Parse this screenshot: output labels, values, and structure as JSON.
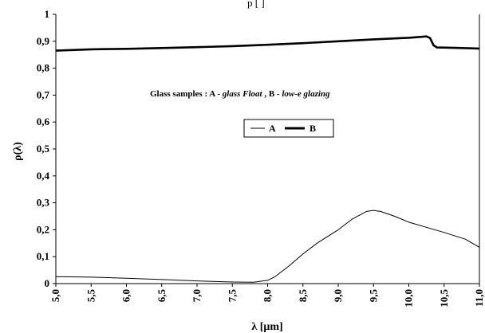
{
  "page": {
    "top_fragment": "p                                   [  ]"
  },
  "chart_data": {
    "type": "line",
    "xlabel": "λ [μm]",
    "ylabel": "ρ(λ)",
    "xlim": [
      5.0,
      11.0
    ],
    "ylim": [
      0,
      1
    ],
    "x_ticks": [
      "5,0",
      "5,5",
      "6,0",
      "6,5",
      "7,0",
      "7,5",
      "8,0",
      "8,5",
      "9,0",
      "9,5",
      "10,0",
      "10,5",
      "11,0"
    ],
    "y_ticks": [
      "0",
      "0,1",
      "0,2",
      "0,3",
      "0,4",
      "0,5",
      "0,6",
      "0,7",
      "0,8",
      "0,9",
      "1"
    ],
    "annotation": {
      "prefix": "Glass samples : A - ",
      "a_name": "glass Float",
      "middle": " , B - ",
      "b_name": "low-e glazing"
    },
    "legend_position": "center",
    "grid": false,
    "series": [
      {
        "name": "A",
        "color": "#000000",
        "points": [
          [
            5.0,
            0.026
          ],
          [
            5.5,
            0.024
          ],
          [
            6.0,
            0.02
          ],
          [
            6.5,
            0.015
          ],
          [
            7.0,
            0.01
          ],
          [
            7.5,
            0.006
          ],
          [
            7.8,
            0.005
          ],
          [
            8.0,
            0.012
          ],
          [
            8.1,
            0.025
          ],
          [
            8.3,
            0.065
          ],
          [
            8.5,
            0.11
          ],
          [
            8.7,
            0.15
          ],
          [
            9.0,
            0.2
          ],
          [
            9.2,
            0.24
          ],
          [
            9.4,
            0.268
          ],
          [
            9.5,
            0.272
          ],
          [
            9.6,
            0.268
          ],
          [
            9.8,
            0.25
          ],
          [
            10.0,
            0.228
          ],
          [
            10.3,
            0.205
          ],
          [
            10.5,
            0.19
          ],
          [
            10.8,
            0.165
          ],
          [
            11.0,
            0.135
          ]
        ]
      },
      {
        "name": "B",
        "color": "#000000",
        "points": [
          [
            5.0,
            0.865
          ],
          [
            5.5,
            0.87
          ],
          [
            6.0,
            0.872
          ],
          [
            6.5,
            0.875
          ],
          [
            7.0,
            0.878
          ],
          [
            7.5,
            0.882
          ],
          [
            8.0,
            0.887
          ],
          [
            8.5,
            0.893
          ],
          [
            9.0,
            0.9
          ],
          [
            9.5,
            0.907
          ],
          [
            10.0,
            0.913
          ],
          [
            10.2,
            0.917
          ],
          [
            10.25,
            0.918
          ],
          [
            10.3,
            0.912
          ],
          [
            10.35,
            0.885
          ],
          [
            10.4,
            0.877
          ],
          [
            10.6,
            0.876
          ],
          [
            11.0,
            0.873
          ]
        ]
      }
    ]
  }
}
